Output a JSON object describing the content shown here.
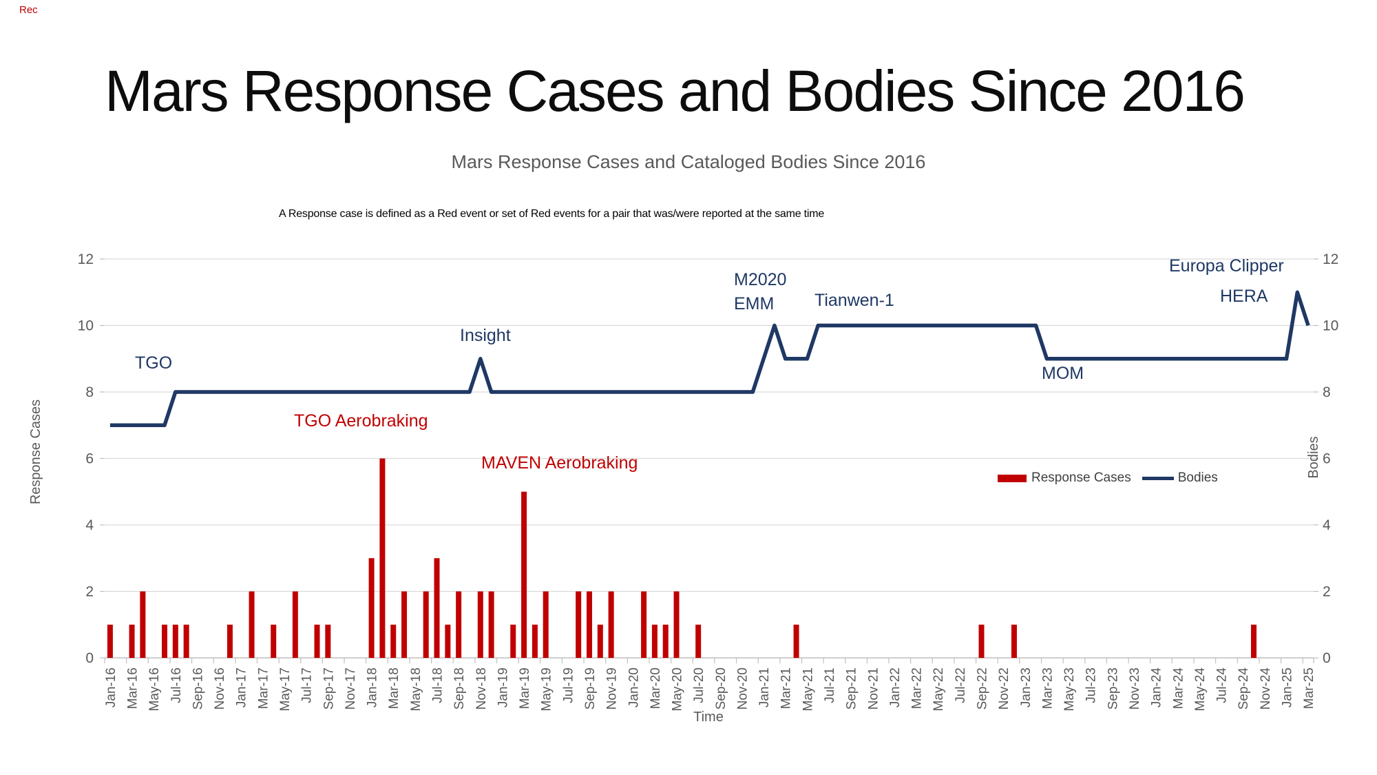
{
  "page": {
    "record_indicator": "Rec",
    "title": "Mars Response Cases and Bodies Since 2016",
    "subtitle": "Mars Response Cases and Cataloged Bodies Since 2016",
    "note": "A Response case is defined as a Red event or set of Red events for a pair that was/were reported at the same time"
  },
  "colors": {
    "bar": "#C00000",
    "line": "#1F3864",
    "grid": "#D9D9D9",
    "axis": "#BFBFBF",
    "axis_text": "#595959",
    "legend_text": "#404040"
  },
  "chart_data": {
    "type": "combo",
    "title": "Mars Response Cases and Cataloged Bodies Since 2016",
    "grid": true,
    "x_axis": {
      "title": "Time",
      "start": "Jan-16",
      "end": "Mar-25",
      "label_interval_months": 2,
      "tick_labels": [
        "Jan-16",
        "Mar-16",
        "May-16",
        "Jul-16",
        "Sep-16",
        "Nov-16",
        "Jan-17",
        "Mar-17",
        "May-17",
        "Jul-17",
        "Sep-17",
        "Nov-17",
        "Jan-18",
        "Mar-18",
        "May-18",
        "Jul-18",
        "Sep-18",
        "Nov-18",
        "Jan-19",
        "Mar-19",
        "May-19",
        "Jul-19",
        "Sep-19",
        "Nov-19",
        "Jan-20",
        "Mar-20",
        "May-20",
        "Jul-20",
        "Sep-20",
        "Nov-20",
        "Jan-21",
        "Mar-21",
        "May-21",
        "Jul-21",
        "Sep-21",
        "Nov-21",
        "Jan-22",
        "Mar-22",
        "May-22",
        "Jul-22",
        "Sep-22",
        "Nov-22",
        "Jan-23",
        "Mar-23",
        "May-23",
        "Jul-23",
        "Sep-23",
        "Nov-23",
        "Jan-24",
        "Mar-24",
        "May-24",
        "Jul-24",
        "Sep-24",
        "Nov-24",
        "Jan-25",
        "Mar-25"
      ]
    },
    "y_left": {
      "title": "Response Cases",
      "range": [
        0,
        12
      ],
      "ticks": [
        0,
        2,
        4,
        6,
        8,
        10,
        12
      ]
    },
    "y_right": {
      "title": "Bodies",
      "range": [
        0,
        12
      ],
      "ticks": [
        0,
        2,
        4,
        6,
        8,
        10,
        12
      ]
    },
    "series": [
      {
        "name": "Response Cases",
        "type": "bar",
        "color": "#C00000",
        "points": [
          {
            "month": "Jan-16",
            "value": 1
          },
          {
            "month": "Mar-16",
            "value": 1
          },
          {
            "month": "Apr-16",
            "value": 2
          },
          {
            "month": "Jun-16",
            "value": 1
          },
          {
            "month": "Jul-16",
            "value": 1
          },
          {
            "month": "Aug-16",
            "value": 1
          },
          {
            "month": "Dec-16",
            "value": 1
          },
          {
            "month": "Feb-17",
            "value": 2
          },
          {
            "month": "Apr-17",
            "value": 1
          },
          {
            "month": "Jun-17",
            "value": 2
          },
          {
            "month": "Aug-17",
            "value": 1
          },
          {
            "month": "Sep-17",
            "value": 1
          },
          {
            "month": "Jan-18",
            "value": 3
          },
          {
            "month": "Feb-18",
            "value": 6
          },
          {
            "month": "Mar-18",
            "value": 1
          },
          {
            "month": "Apr-18",
            "value": 2
          },
          {
            "month": "Jun-18",
            "value": 2
          },
          {
            "month": "Jul-18",
            "value": 3
          },
          {
            "month": "Aug-18",
            "value": 1
          },
          {
            "month": "Sep-18",
            "value": 2
          },
          {
            "month": "Nov-18",
            "value": 2
          },
          {
            "month": "Dec-18",
            "value": 2
          },
          {
            "month": "Feb-19",
            "value": 1
          },
          {
            "month": "Mar-19",
            "value": 5
          },
          {
            "month": "Apr-19",
            "value": 1
          },
          {
            "month": "May-19",
            "value": 2
          },
          {
            "month": "Aug-19",
            "value": 2
          },
          {
            "month": "Sep-19",
            "value": 2
          },
          {
            "month": "Oct-19",
            "value": 1
          },
          {
            "month": "Nov-19",
            "value": 2
          },
          {
            "month": "Feb-20",
            "value": 2
          },
          {
            "month": "Mar-20",
            "value": 1
          },
          {
            "month": "Apr-20",
            "value": 1
          },
          {
            "month": "May-20",
            "value": 2
          },
          {
            "month": "Jul-20",
            "value": 1
          },
          {
            "month": "Apr-21",
            "value": 1
          },
          {
            "month": "Sep-22",
            "value": 1
          },
          {
            "month": "Dec-22",
            "value": 1
          },
          {
            "month": "Oct-24",
            "value": 1
          }
        ]
      },
      {
        "name": "Bodies",
        "type": "line",
        "color": "#1F3864",
        "segments": [
          {
            "from": "Jan-16",
            "to": "Jun-16",
            "value": 7
          },
          {
            "from": "Jul-16",
            "to": "Oct-18",
            "value": 8
          },
          {
            "from": "Nov-18",
            "to": "Nov-18",
            "value": 9
          },
          {
            "from": "Dec-18",
            "to": "Dec-20",
            "value": 8
          },
          {
            "from": "Jan-21",
            "to": "Jan-21",
            "value": 9
          },
          {
            "from": "Feb-21",
            "to": "Feb-21",
            "value": 10
          },
          {
            "from": "Mar-21",
            "to": "May-21",
            "value": 9
          },
          {
            "from": "Jun-21",
            "to": "Feb-23",
            "value": 10
          },
          {
            "from": "Mar-23",
            "to": "Jan-25",
            "value": 9
          },
          {
            "from": "Feb-25",
            "to": "Feb-25",
            "value": 11
          },
          {
            "from": "Mar-25",
            "to": "Mar-25",
            "value": 10
          }
        ]
      }
    ],
    "annotations": [
      {
        "text": "TGO",
        "color": "#1F3864"
      },
      {
        "text": "TGO Aerobraking",
        "color": "#C00000"
      },
      {
        "text": "Insight",
        "color": "#1F3864"
      },
      {
        "text": "MAVEN Aerobraking",
        "color": "#C00000"
      },
      {
        "text": "M2020",
        "color": "#1F3864"
      },
      {
        "text": "EMM",
        "color": "#1F3864"
      },
      {
        "text": "Tianwen-1",
        "color": "#1F3864"
      },
      {
        "text": "MOM",
        "color": "#1F3864"
      },
      {
        "text": "Europa Clipper",
        "color": "#1F3864"
      },
      {
        "text": "HERA",
        "color": "#1F3864"
      }
    ],
    "legend": {
      "position": "center-right",
      "items": [
        "Response Cases",
        "Bodies"
      ]
    }
  }
}
